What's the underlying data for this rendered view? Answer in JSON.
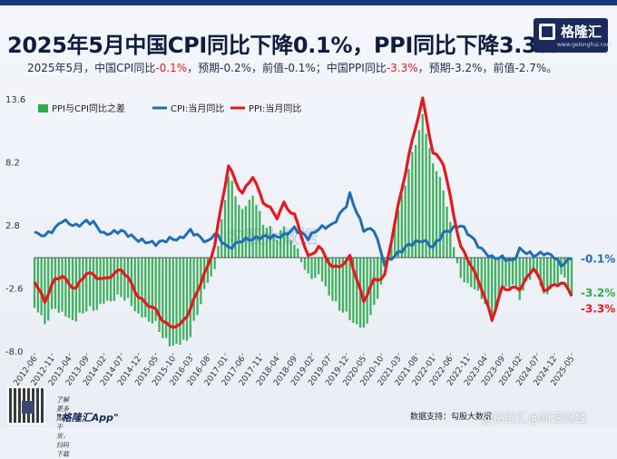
{
  "header": {
    "title": "2025年5月中国CPI同比下降0.1%，PPI同比下降3.3%",
    "subtitle_parts": [
      {
        "text": "2025年5月，中国CPI同比",
        "red": false
      },
      {
        "text": "-0.1%",
        "red": true
      },
      {
        "text": "，预期-0.2%，前值-0.1%；中国PPI同比",
        "red": false
      },
      {
        "text": "-3.3%",
        "red": true
      },
      {
        "text": "，预期-3.2%，前值-2.7%。",
        "red": false
      }
    ]
  },
  "logo": {
    "name": "格隆汇",
    "url": "www.gelonghui.com"
  },
  "watermark": "勾股大数据",
  "footer": {
    "promo": "了解更多图文干货，扫码下载",
    "app": "\"格隆汇App\"",
    "source": "数据支持：勾股大数据",
    "weibo_watermark": "@格隆汇@新浪财经"
  },
  "colors": {
    "ppi": "#e31a1c",
    "cpi": "#1f6fb5",
    "diff": "#2fa84f"
  },
  "chart_data": {
    "type": "line",
    "ylim": [
      -8.0,
      13.6
    ],
    "yticks": [
      13.6,
      8.2,
      2.8,
      -2.6,
      -8.0
    ],
    "xlabels": [
      "2012-06",
      "2012-11",
      "2013-04",
      "2013-09",
      "2014-02",
      "2014-07",
      "2014-12",
      "2015-05",
      "2015-10",
      "2016-03",
      "2016-08",
      "2017-01",
      "2017-06",
      "2017-11",
      "2018-04",
      "2018-09",
      "2019-02",
      "2019-07",
      "2019-12",
      "2020-05",
      "2020-10",
      "2021-03",
      "2021-08",
      "2022-01",
      "2022-06",
      "2022-11",
      "2023-04",
      "2023-09",
      "2024-02",
      "2024-07",
      "2024-12",
      "2025-05"
    ],
    "anchors": [
      {
        "date": "2012-06",
        "ppi": -2.1,
        "cpi": 2.2
      },
      {
        "date": "2012-09",
        "ppi": -3.6,
        "cpi": 1.9
      },
      {
        "date": "2012-12",
        "ppi": -1.9,
        "cpi": 2.5
      },
      {
        "date": "2013-02",
        "ppi": -1.6,
        "cpi": 3.2
      },
      {
        "date": "2013-06",
        "ppi": -2.7,
        "cpi": 2.7
      },
      {
        "date": "2013-09",
        "ppi": -1.3,
        "cpi": 3.1
      },
      {
        "date": "2013-11",
        "ppi": -1.4,
        "cpi": 3.0
      },
      {
        "date": "2014-02",
        "ppi": -2.0,
        "cpi": 2.0
      },
      {
        "date": "2014-07",
        "ppi": -0.9,
        "cpi": 2.3
      },
      {
        "date": "2014-12",
        "ppi": -3.3,
        "cpi": 1.5
      },
      {
        "date": "2015-05",
        "ppi": -4.6,
        "cpi": 1.2
      },
      {
        "date": "2015-09",
        "ppi": -5.9,
        "cpi": 1.6
      },
      {
        "date": "2015-12",
        "ppi": -5.9,
        "cpi": 1.6
      },
      {
        "date": "2016-03",
        "ppi": -4.3,
        "cpi": 2.3
      },
      {
        "date": "2016-08",
        "ppi": -0.8,
        "cpi": 1.3
      },
      {
        "date": "2016-10",
        "ppi": 1.2,
        "cpi": 2.1
      },
      {
        "date": "2017-02",
        "ppi": 7.8,
        "cpi": 0.8
      },
      {
        "date": "2017-06",
        "ppi": 5.5,
        "cpi": 1.5
      },
      {
        "date": "2017-09",
        "ppi": 6.9,
        "cpi": 1.6
      },
      {
        "date": "2017-12",
        "ppi": 4.9,
        "cpi": 1.8
      },
      {
        "date": "2018-04",
        "ppi": 3.4,
        "cpi": 1.8
      },
      {
        "date": "2018-06",
        "ppi": 4.7,
        "cpi": 1.9
      },
      {
        "date": "2018-09",
        "ppi": 3.6,
        "cpi": 2.5
      },
      {
        "date": "2019-01",
        "ppi": 0.1,
        "cpi": 1.7
      },
      {
        "date": "2019-04",
        "ppi": 0.9,
        "cpi": 2.5
      },
      {
        "date": "2019-08",
        "ppi": -0.8,
        "cpi": 2.8
      },
      {
        "date": "2019-12",
        "ppi": -0.5,
        "cpi": 4.5
      },
      {
        "date": "2020-01",
        "ppi": 0.1,
        "cpi": 5.4
      },
      {
        "date": "2020-05",
        "ppi": -3.7,
        "cpi": 2.4
      },
      {
        "date": "2020-08",
        "ppi": -2.0,
        "cpi": 2.4
      },
      {
        "date": "2020-11",
        "ppi": -1.5,
        "cpi": -0.5
      },
      {
        "date": "2021-03",
        "ppi": 4.4,
        "cpi": 0.4
      },
      {
        "date": "2021-06",
        "ppi": 8.8,
        "cpi": 1.1
      },
      {
        "date": "2021-10",
        "ppi": 13.5,
        "cpi": 1.5
      },
      {
        "date": "2022-01",
        "ppi": 9.1,
        "cpi": 0.9
      },
      {
        "date": "2022-04",
        "ppi": 8.0,
        "cpi": 2.1
      },
      {
        "date": "2022-09",
        "ppi": 0.9,
        "cpi": 2.8
      },
      {
        "date": "2022-12",
        "ppi": -0.7,
        "cpi": 1.8
      },
      {
        "date": "2023-03",
        "ppi": -2.5,
        "cpi": 0.7
      },
      {
        "date": "2023-06",
        "ppi": -5.4,
        "cpi": 0.0
      },
      {
        "date": "2023-09",
        "ppi": -2.5,
        "cpi": 0.0
      },
      {
        "date": "2023-12",
        "ppi": -2.7,
        "cpi": -0.3
      },
      {
        "date": "2024-02",
        "ppi": -2.7,
        "cpi": 0.7
      },
      {
        "date": "2024-06",
        "ppi": -0.8,
        "cpi": 0.2
      },
      {
        "date": "2024-09",
        "ppi": -2.8,
        "cpi": 0.4
      },
      {
        "date": "2024-12",
        "ppi": -2.3,
        "cpi": 0.1
      },
      {
        "date": "2025-02",
        "ppi": -2.2,
        "cpi": -0.7
      },
      {
        "date": "2025-04",
        "ppi": -2.7,
        "cpi": -0.1
      },
      {
        "date": "2025-05",
        "ppi": -3.3,
        "cpi": -0.1
      }
    ],
    "series": [
      {
        "name": "PPI与CPI同比之差",
        "type": "bar",
        "values": "ppi - cpi"
      },
      {
        "name": "CPI:当月同比",
        "type": "line"
      },
      {
        "name": "PPI:当月同比",
        "type": "line"
      }
    ],
    "end_labels": {
      "cpi": "-0.1%",
      "diff": "-3.2%",
      "ppi": "-3.3%"
    }
  }
}
